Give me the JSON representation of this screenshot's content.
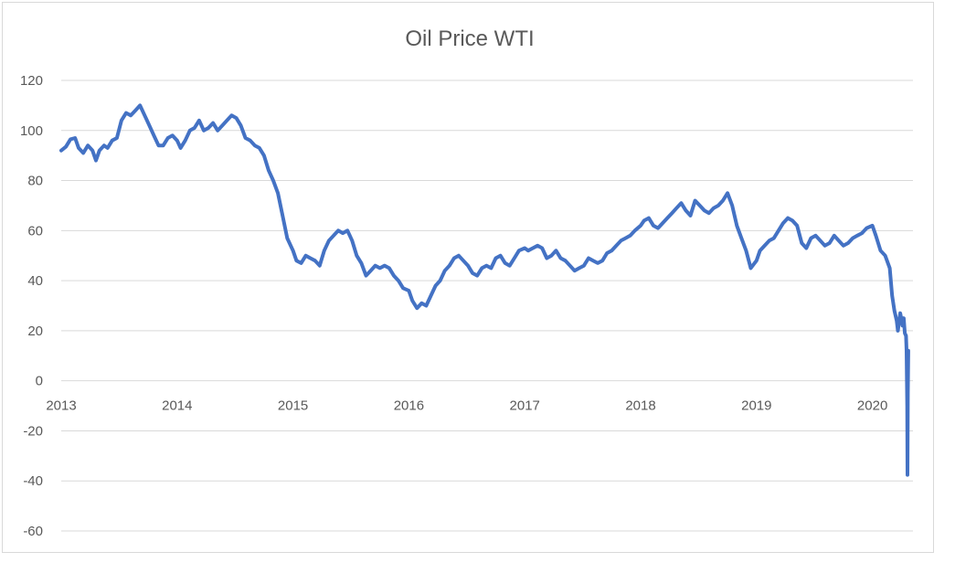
{
  "chart_data": {
    "type": "line",
    "title": "Oil Price WTI",
    "xlabel": "",
    "ylabel": "",
    "ylim": [
      -60,
      120
    ],
    "xlim": [
      2013.0,
      2020.35
    ],
    "y_ticks": [
      "120",
      "100",
      "80",
      "60",
      "40",
      "20",
      "0",
      "-20",
      "-40",
      "-60"
    ],
    "x_ticks": [
      "2013",
      "2014",
      "2015",
      "2016",
      "2017",
      "2018",
      "2019",
      "2020"
    ],
    "grid": true,
    "legend": "none",
    "color": "#4472c4",
    "series": [
      {
        "points": [
          [
            2013.0,
            92.0
          ],
          [
            2013.04,
            93.5
          ],
          [
            2013.08,
            96.5
          ],
          [
            2013.12,
            97.0
          ],
          [
            2013.15,
            93.0
          ],
          [
            2013.19,
            91.0
          ],
          [
            2013.23,
            94.0
          ],
          [
            2013.27,
            92.0
          ],
          [
            2013.3,
            88.0
          ],
          [
            2013.33,
            92.0
          ],
          [
            2013.37,
            94.0
          ],
          [
            2013.4,
            93.0
          ],
          [
            2013.44,
            96.0
          ],
          [
            2013.48,
            97.0
          ],
          [
            2013.52,
            104.0
          ],
          [
            2013.56,
            107.0
          ],
          [
            2013.6,
            106.0
          ],
          [
            2013.64,
            108.0
          ],
          [
            2013.68,
            110.0
          ],
          [
            2013.72,
            106.0
          ],
          [
            2013.76,
            102.0
          ],
          [
            2013.8,
            98.0
          ],
          [
            2013.84,
            94.0
          ],
          [
            2013.88,
            94.0
          ],
          [
            2013.92,
            97.0
          ],
          [
            2013.96,
            98.0
          ],
          [
            2014.0,
            96.0
          ],
          [
            2014.03,
            93.0
          ],
          [
            2014.07,
            96.0
          ],
          [
            2014.11,
            100.0
          ],
          [
            2014.15,
            101.0
          ],
          [
            2014.19,
            104.0
          ],
          [
            2014.23,
            100.0
          ],
          [
            2014.27,
            101.0
          ],
          [
            2014.31,
            103.0
          ],
          [
            2014.35,
            100.0
          ],
          [
            2014.39,
            102.0
          ],
          [
            2014.43,
            104.0
          ],
          [
            2014.47,
            106.0
          ],
          [
            2014.51,
            105.0
          ],
          [
            2014.55,
            102.0
          ],
          [
            2014.59,
            97.0
          ],
          [
            2014.63,
            96.0
          ],
          [
            2014.67,
            94.0
          ],
          [
            2014.71,
            93.0
          ],
          [
            2014.75,
            90.0
          ],
          [
            2014.79,
            84.0
          ],
          [
            2014.83,
            80.0
          ],
          [
            2014.87,
            75.0
          ],
          [
            2014.91,
            66.0
          ],
          [
            2014.95,
            57.0
          ],
          [
            2015.0,
            52.0
          ],
          [
            2015.03,
            48.0
          ],
          [
            2015.07,
            47.0
          ],
          [
            2015.11,
            50.0
          ],
          [
            2015.15,
            49.0
          ],
          [
            2015.19,
            48.0
          ],
          [
            2015.23,
            46.0
          ],
          [
            2015.27,
            52.0
          ],
          [
            2015.31,
            56.0
          ],
          [
            2015.35,
            58.0
          ],
          [
            2015.39,
            60.0
          ],
          [
            2015.43,
            59.0
          ],
          [
            2015.47,
            60.0
          ],
          [
            2015.51,
            56.0
          ],
          [
            2015.55,
            50.0
          ],
          [
            2015.59,
            47.0
          ],
          [
            2015.63,
            42.0
          ],
          [
            2015.67,
            44.0
          ],
          [
            2015.71,
            46.0
          ],
          [
            2015.75,
            45.0
          ],
          [
            2015.79,
            46.0
          ],
          [
            2015.83,
            45.0
          ],
          [
            2015.87,
            42.0
          ],
          [
            2015.91,
            40.0
          ],
          [
            2015.95,
            37.0
          ],
          [
            2016.0,
            36.0
          ],
          [
            2016.03,
            32.0
          ],
          [
            2016.07,
            29.0
          ],
          [
            2016.11,
            31.0
          ],
          [
            2016.15,
            30.0
          ],
          [
            2016.19,
            34.0
          ],
          [
            2016.23,
            38.0
          ],
          [
            2016.27,
            40.0
          ],
          [
            2016.31,
            44.0
          ],
          [
            2016.35,
            46.0
          ],
          [
            2016.39,
            49.0
          ],
          [
            2016.43,
            50.0
          ],
          [
            2016.47,
            48.0
          ],
          [
            2016.51,
            46.0
          ],
          [
            2016.55,
            43.0
          ],
          [
            2016.59,
            42.0
          ],
          [
            2016.63,
            45.0
          ],
          [
            2016.67,
            46.0
          ],
          [
            2016.71,
            45.0
          ],
          [
            2016.75,
            49.0
          ],
          [
            2016.79,
            50.0
          ],
          [
            2016.83,
            47.0
          ],
          [
            2016.87,
            46.0
          ],
          [
            2016.91,
            49.0
          ],
          [
            2016.95,
            52.0
          ],
          [
            2017.0,
            53.0
          ],
          [
            2017.03,
            52.0
          ],
          [
            2017.07,
            53.0
          ],
          [
            2017.11,
            54.0
          ],
          [
            2017.15,
            53.0
          ],
          [
            2017.19,
            49.0
          ],
          [
            2017.23,
            50.0
          ],
          [
            2017.27,
            52.0
          ],
          [
            2017.31,
            49.0
          ],
          [
            2017.35,
            48.0
          ],
          [
            2017.39,
            46.0
          ],
          [
            2017.43,
            44.0
          ],
          [
            2017.47,
            45.0
          ],
          [
            2017.51,
            46.0
          ],
          [
            2017.55,
            49.0
          ],
          [
            2017.59,
            48.0
          ],
          [
            2017.63,
            47.0
          ],
          [
            2017.67,
            48.0
          ],
          [
            2017.71,
            51.0
          ],
          [
            2017.75,
            52.0
          ],
          [
            2017.79,
            54.0
          ],
          [
            2017.83,
            56.0
          ],
          [
            2017.87,
            57.0
          ],
          [
            2017.91,
            58.0
          ],
          [
            2017.95,
            60.0
          ],
          [
            2018.0,
            62.0
          ],
          [
            2018.03,
            64.0
          ],
          [
            2018.07,
            65.0
          ],
          [
            2018.11,
            62.0
          ],
          [
            2018.15,
            61.0
          ],
          [
            2018.19,
            63.0
          ],
          [
            2018.23,
            65.0
          ],
          [
            2018.27,
            67.0
          ],
          [
            2018.31,
            69.0
          ],
          [
            2018.35,
            71.0
          ],
          [
            2018.39,
            68.0
          ],
          [
            2018.43,
            66.0
          ],
          [
            2018.47,
            72.0
          ],
          [
            2018.51,
            70.0
          ],
          [
            2018.55,
            68.0
          ],
          [
            2018.59,
            67.0
          ],
          [
            2018.63,
            69.0
          ],
          [
            2018.67,
            70.0
          ],
          [
            2018.71,
            72.0
          ],
          [
            2018.75,
            75.0
          ],
          [
            2018.79,
            70.0
          ],
          [
            2018.83,
            62.0
          ],
          [
            2018.87,
            57.0
          ],
          [
            2018.91,
            52.0
          ],
          [
            2018.95,
            45.0
          ],
          [
            2019.0,
            48.0
          ],
          [
            2019.03,
            52.0
          ],
          [
            2019.07,
            54.0
          ],
          [
            2019.11,
            56.0
          ],
          [
            2019.15,
            57.0
          ],
          [
            2019.19,
            60.0
          ],
          [
            2019.23,
            63.0
          ],
          [
            2019.27,
            65.0
          ],
          [
            2019.31,
            64.0
          ],
          [
            2019.35,
            62.0
          ],
          [
            2019.39,
            55.0
          ],
          [
            2019.43,
            53.0
          ],
          [
            2019.47,
            57.0
          ],
          [
            2019.51,
            58.0
          ],
          [
            2019.55,
            56.0
          ],
          [
            2019.59,
            54.0
          ],
          [
            2019.63,
            55.0
          ],
          [
            2019.67,
            58.0
          ],
          [
            2019.71,
            56.0
          ],
          [
            2019.75,
            54.0
          ],
          [
            2019.79,
            55.0
          ],
          [
            2019.83,
            57.0
          ],
          [
            2019.87,
            58.0
          ],
          [
            2019.91,
            59.0
          ],
          [
            2019.95,
            61.0
          ],
          [
            2020.0,
            62.0
          ],
          [
            2020.03,
            58.0
          ],
          [
            2020.07,
            52.0
          ],
          [
            2020.11,
            50.0
          ],
          [
            2020.15,
            45.0
          ],
          [
            2020.17,
            34.0
          ],
          [
            2020.19,
            28.0
          ],
          [
            2020.21,
            24.0
          ],
          [
            2020.22,
            20.0
          ],
          [
            2020.24,
            27.0
          ],
          [
            2020.26,
            22.0
          ],
          [
            2020.27,
            25.0
          ],
          [
            2020.28,
            19.0
          ],
          [
            2020.29,
            18.0
          ],
          [
            2020.295,
            12.0
          ],
          [
            2020.3,
            -10.0
          ],
          [
            2020.303,
            -37.6
          ],
          [
            2020.306,
            -5.0
          ],
          [
            2020.31,
            12.0
          ]
        ]
      }
    ]
  }
}
